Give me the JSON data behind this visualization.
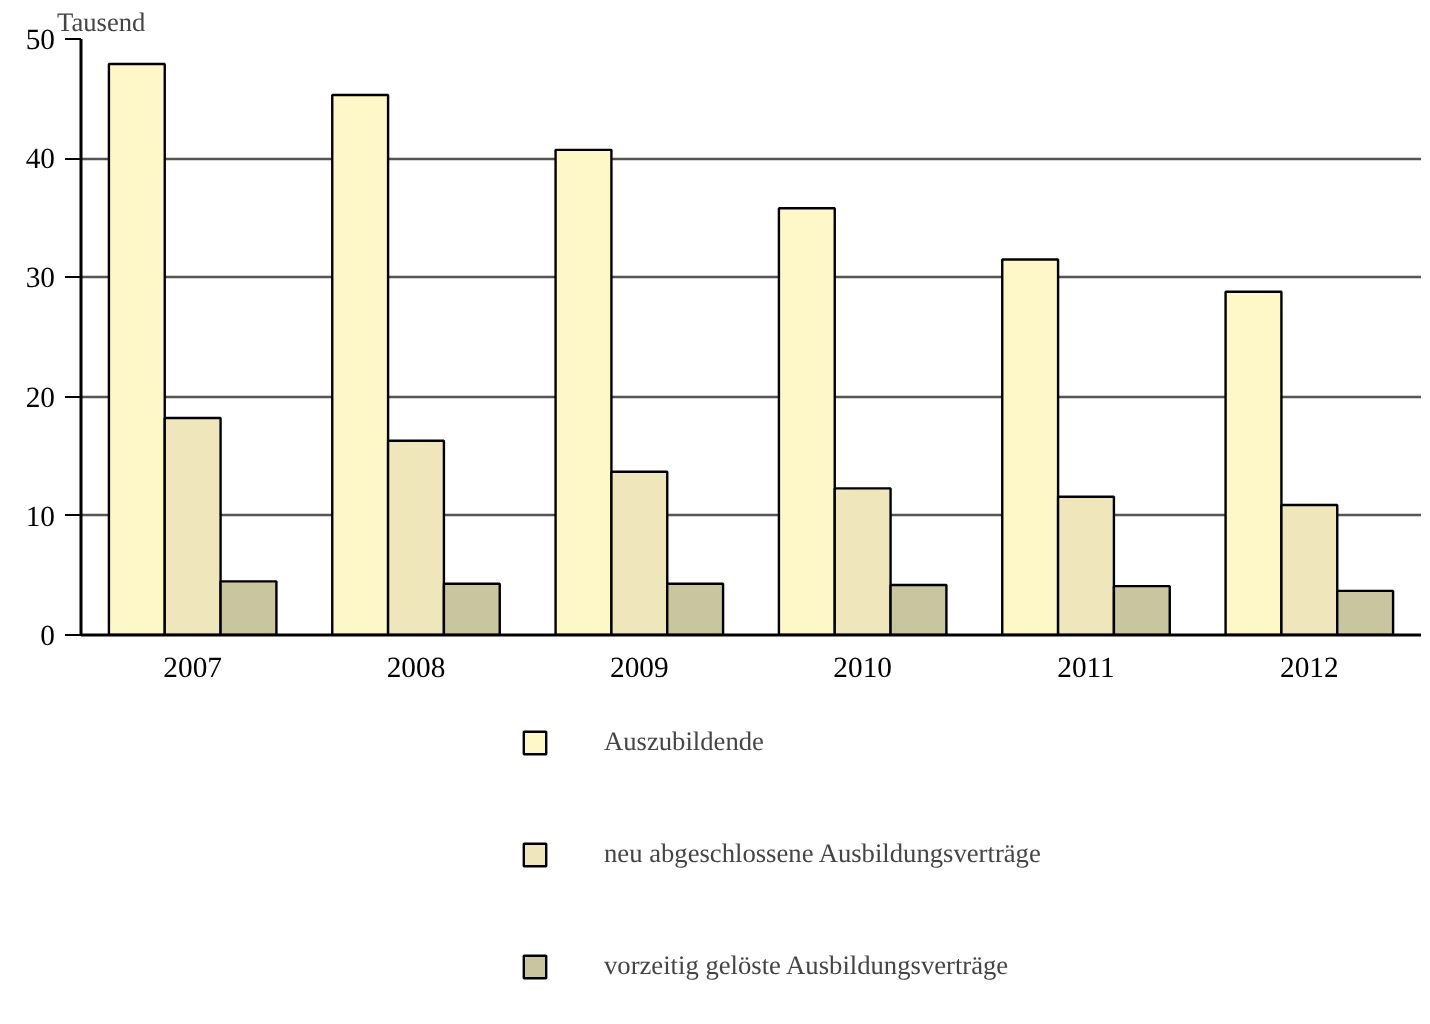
{
  "chart_data": {
    "type": "bar",
    "ylabel": "Tausend",
    "categories": [
      "2007",
      "2008",
      "2009",
      "2010",
      "2011",
      "2012"
    ],
    "series": [
      {
        "name": "Auszubildende",
        "color": "#fef8c8",
        "values": [
          47.9,
          45.3,
          40.7,
          35.8,
          31.5,
          28.8
        ]
      },
      {
        "name": "neu abgeschlossene Ausbildungsverträge",
        "color": "#efe7bb",
        "values": [
          18.2,
          16.3,
          13.7,
          12.3,
          11.6,
          10.9
        ]
      },
      {
        "name": "vorzeitig gelöste Ausbildungsverträge",
        "color": "#c8c59f",
        "values": [
          4.5,
          4.3,
          4.3,
          4.2,
          4.1,
          3.7
        ]
      }
    ],
    "ylim": [
      0,
      50
    ],
    "yticks": [
      0,
      10,
      20,
      30,
      40,
      50
    ],
    "grid": "y",
    "legend": "bottom"
  }
}
